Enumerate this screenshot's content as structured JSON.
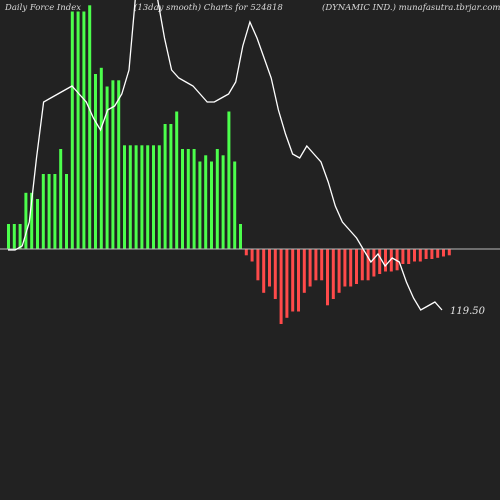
{
  "header": {
    "left": "Daily Force Index",
    "middle": "(13day smooth) Charts for 524818",
    "right": "(DYNAMIC IND.) munafasutra.tbrjar.com"
  },
  "colors": {
    "background": "#222222",
    "positive_bar": "#4cff4c",
    "negative_bar": "#ff4a4a",
    "price_line": "#ffffff",
    "zero_line": "#bbbbbb"
  },
  "chart_data": {
    "type": "bar",
    "title": "Daily Force Index",
    "last_value_label": "119.50",
    "force_index": [
      20,
      20,
      20,
      45,
      45,
      40,
      60,
      60,
      60,
      80,
      60,
      190,
      190,
      190,
      195,
      140,
      145,
      130,
      135,
      135,
      83,
      83,
      83,
      83,
      83,
      83,
      83,
      100,
      100,
      110,
      80,
      80,
      80,
      70,
      75,
      70,
      80,
      75,
      110,
      70,
      20,
      -5,
      -10,
      -25,
      -35,
      -30,
      -40,
      -60,
      -55,
      -50,
      -50,
      -35,
      -30,
      -25,
      -25,
      -45,
      -40,
      -35,
      -30,
      -30,
      -28,
      -25,
      -25,
      -22,
      -20,
      -18,
      -18,
      -17,
      -12,
      -12,
      -10,
      -10,
      -8,
      -8,
      -7,
      -6,
      -5
    ],
    "price_line": [
      55,
      55,
      56,
      62,
      78,
      92,
      93,
      94,
      95,
      96,
      94,
      92,
      88,
      85,
      90,
      91,
      94,
      100,
      120,
      126,
      122,
      118,
      108,
      100,
      98,
      97,
      96,
      94,
      92,
      92,
      93,
      94,
      97,
      106,
      112,
      108,
      103,
      98,
      90,
      84,
      79,
      78,
      81,
      79,
      77,
      72,
      66,
      62,
      60,
      58,
      55,
      52,
      54,
      51,
      53,
      52,
      47,
      43,
      40,
      41,
      42,
      40
    ]
  }
}
